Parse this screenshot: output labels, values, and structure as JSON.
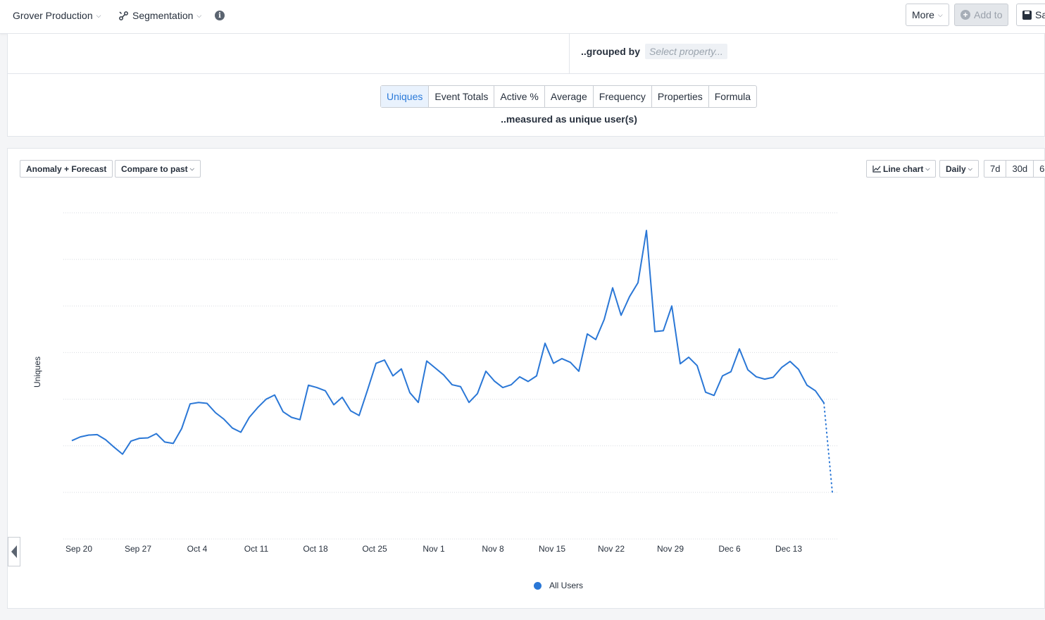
{
  "topbar": {
    "project": "Grover Production",
    "chart_type": "Segmentation",
    "more_label": "More",
    "add_to_label": "Add to",
    "save_label": "Sa"
  },
  "segment": {
    "grouped_by_label": "..grouped by",
    "select_property_placeholder": "Select property..."
  },
  "measure": {
    "tabs": [
      "Uniques",
      "Event Totals",
      "Active %",
      "Average",
      "Frequency",
      "Properties",
      "Formula"
    ],
    "active_tab": "Uniques",
    "measured_as": "..measured as unique user(s)"
  },
  "controls": {
    "anomaly_label": "Anomaly + Forecast",
    "compare_label": "Compare to past",
    "chart_type_label": "Line chart",
    "interval_label": "Daily",
    "ranges": [
      "7d",
      "30d",
      "6"
    ]
  },
  "colors": {
    "accent": "#2b7ad9",
    "series": "#2a77d6"
  },
  "chart_data": {
    "type": "line",
    "ylabel": "Uniques",
    "ylim": [
      0,
      7
    ],
    "grid": true,
    "y_tick_labels_visible": false,
    "x_tick_labels": [
      "Sep 20",
      "Sep 27",
      "Oct 4",
      "Oct 11",
      "Oct 18",
      "Oct 25",
      "Nov 1",
      "Nov 8",
      "Nov 15",
      "Nov 22",
      "Nov 29",
      "Dec 6",
      "Dec 13"
    ],
    "legend_position": "bottom",
    "series": [
      {
        "name": "All Users",
        "start": "Sep 20",
        "interval": "daily",
        "values": [
          2.11,
          2.19,
          2.23,
          2.24,
          2.13,
          1.97,
          1.82,
          2.1,
          2.16,
          2.17,
          2.26,
          2.08,
          2.05,
          2.37,
          2.9,
          2.93,
          2.91,
          2.71,
          2.57,
          2.38,
          2.29,
          2.61,
          2.82,
          3.0,
          3.09,
          2.73,
          2.61,
          2.56,
          3.3,
          3.25,
          3.18,
          2.88,
          3.04,
          2.75,
          2.65,
          3.2,
          3.77,
          3.84,
          3.5,
          3.65,
          3.14,
          2.93,
          3.82,
          3.67,
          3.52,
          3.31,
          3.27,
          2.93,
          3.12,
          3.6,
          3.39,
          3.25,
          3.31,
          3.48,
          3.38,
          3.5,
          4.2,
          3.77,
          3.87,
          3.79,
          3.6,
          4.4,
          4.28,
          4.71,
          5.39,
          4.8,
          5.2,
          5.5,
          6.62,
          4.45,
          4.47,
          5.0,
          3.76,
          3.9,
          3.72,
          3.15,
          3.08,
          3.5,
          3.59,
          4.08,
          3.63,
          3.48,
          3.43,
          3.47,
          3.68,
          3.81,
          3.64,
          3.3,
          3.18,
          2.92
        ],
        "forecast_values": [
          2.92,
          1.0
        ]
      }
    ]
  }
}
